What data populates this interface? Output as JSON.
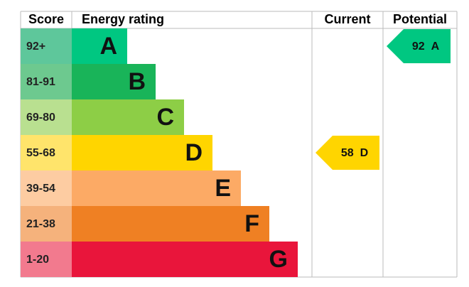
{
  "chart_data": {
    "type": "energy-rating",
    "headers": {
      "score": "Score",
      "rating": "Energy rating",
      "current": "Current",
      "potential": "Potential"
    },
    "bands": [
      {
        "score": "92+",
        "rating": "A",
        "color": "#00c781",
        "score_color": "#5ec79b"
      },
      {
        "score": "81-91",
        "rating": "B",
        "color": "#19b459",
        "score_color": "#6dc98f"
      },
      {
        "score": "69-80",
        "rating": "C",
        "color": "#8dce46",
        "score_color": "#b9e090"
      },
      {
        "score": "55-68",
        "rating": "D",
        "color": "#ffd500",
        "score_color": "#ffe46b"
      },
      {
        "score": "39-54",
        "rating": "E",
        "color": "#fcaa65",
        "score_color": "#fdcca2"
      },
      {
        "score": "21-38",
        "rating": "F",
        "color": "#ef8023",
        "score_color": "#f5b27c"
      },
      {
        "score": "1-20",
        "rating": "G",
        "color": "#e9153b",
        "score_color": "#f27a8e"
      }
    ],
    "current": {
      "value": 58,
      "rating": "D"
    },
    "potential": {
      "value": 92,
      "rating": "A"
    }
  }
}
